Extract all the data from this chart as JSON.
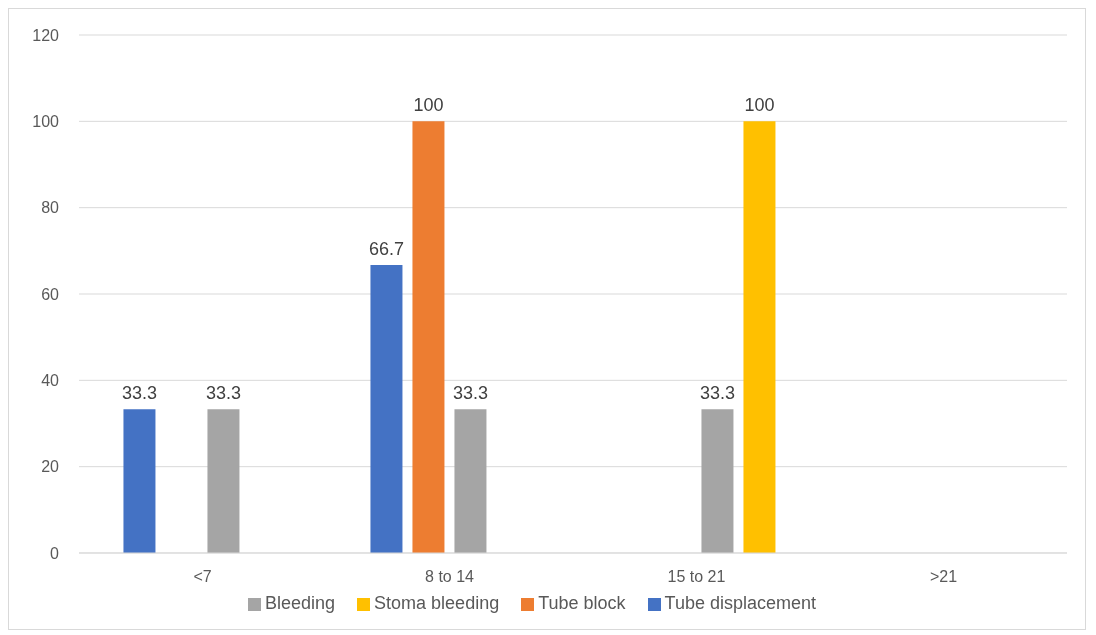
{
  "chart_data": {
    "type": "bar",
    "categories": [
      "<7",
      "8 to 14",
      "15 to 21",
      ">21"
    ],
    "series": [
      {
        "name": "Tube displacement",
        "color": "#4472c4",
        "values": [
          33.3,
          66.7,
          null,
          null
        ]
      },
      {
        "name": "Tube block",
        "color": "#ed7d31",
        "values": [
          null,
          100,
          null,
          null
        ]
      },
      {
        "name": "Bleeding",
        "color": "#a5a5a5",
        "values": [
          33.3,
          33.3,
          33.3,
          null
        ]
      },
      {
        "name": "Stoma bleeding",
        "color": "#ffc000",
        "values": [
          null,
          null,
          100,
          null
        ]
      }
    ],
    "ylim": [
      0,
      120
    ],
    "yticks": [
      0,
      20,
      40,
      60,
      80,
      100,
      120
    ],
    "grid": "y",
    "legend": "bottom",
    "data_labels": true
  }
}
